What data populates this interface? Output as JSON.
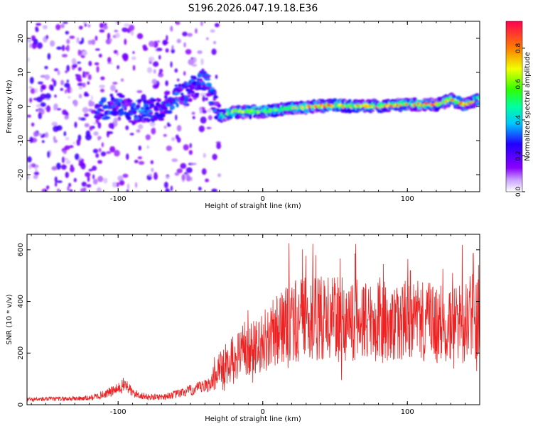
{
  "chart_data": [
    {
      "type": "heatmap",
      "title": "S196.2026.047.19.18.E36",
      "xlabel": "Height of straight line (km)",
      "ylabel": "Frequency (Hz)",
      "xlim": [
        -163,
        150
      ],
      "ylim": [
        -25,
        25
      ],
      "x_ticks": [
        -100,
        0,
        100
      ],
      "y_ticks": [
        -20,
        -10,
        0,
        10,
        20
      ],
      "colorbar": {
        "label": "Normalized spectral amplitude",
        "range": [
          0,
          0.95
        ],
        "ticks": [
          0.0,
          0.2,
          0.4,
          0.6,
          0.8
        ],
        "colors": [
          "#ffffff",
          "#8a00ff",
          "#2200ff",
          "#00c8ff",
          "#00ff60",
          "#f0ff00",
          "#ff8000",
          "#ff0040"
        ]
      },
      "ridge": {
        "x": [
          -110,
          -100,
          -90,
          -80,
          -70,
          -60,
          -50,
          -40,
          -30,
          -20,
          -10,
          0,
          10,
          20,
          30,
          40,
          50,
          60,
          70,
          80,
          90,
          100,
          110,
          120,
          130,
          140,
          148
        ],
        "y": [
          -1,
          1,
          -2,
          -1,
          -1,
          3,
          5,
          8,
          -3,
          -1.5,
          -1.5,
          -1.5,
          -1,
          -0.5,
          -0.2,
          0.2,
          0.3,
          0.2,
          0.1,
          0.1,
          0.3,
          0.6,
          0.6,
          0.5,
          2,
          0.5,
          2
        ]
      }
    },
    {
      "type": "line",
      "title": "",
      "xlabel": "Height of straight line (km)",
      "ylabel": "SNR (10 * v/v)",
      "xlim": [
        -163,
        150
      ],
      "ylim": [
        0,
        660
      ],
      "x_ticks": [
        -100,
        0,
        100
      ],
      "y_ticks": [
        0,
        200,
        400,
        600
      ],
      "series": [
        {
          "name": "SNR",
          "color": "#ee2222",
          "envelope_x": [
            -163,
            -120,
            -110,
            -100,
            -95,
            -90,
            -80,
            -70,
            -60,
            -50,
            -40,
            -35,
            -30,
            -25,
            -20,
            -10,
            0,
            10,
            20,
            30,
            40,
            50,
            60,
            70,
            80,
            90,
            100,
            110,
            120,
            130,
            140,
            150
          ],
          "envelope_y": [
            20,
            25,
            40,
            60,
            80,
            45,
            30,
            30,
            40,
            55,
            70,
            90,
            150,
            160,
            180,
            210,
            240,
            290,
            320,
            330,
            340,
            330,
            330,
            330,
            320,
            320,
            330,
            320,
            310,
            320,
            320,
            360
          ]
        }
      ]
    }
  ]
}
